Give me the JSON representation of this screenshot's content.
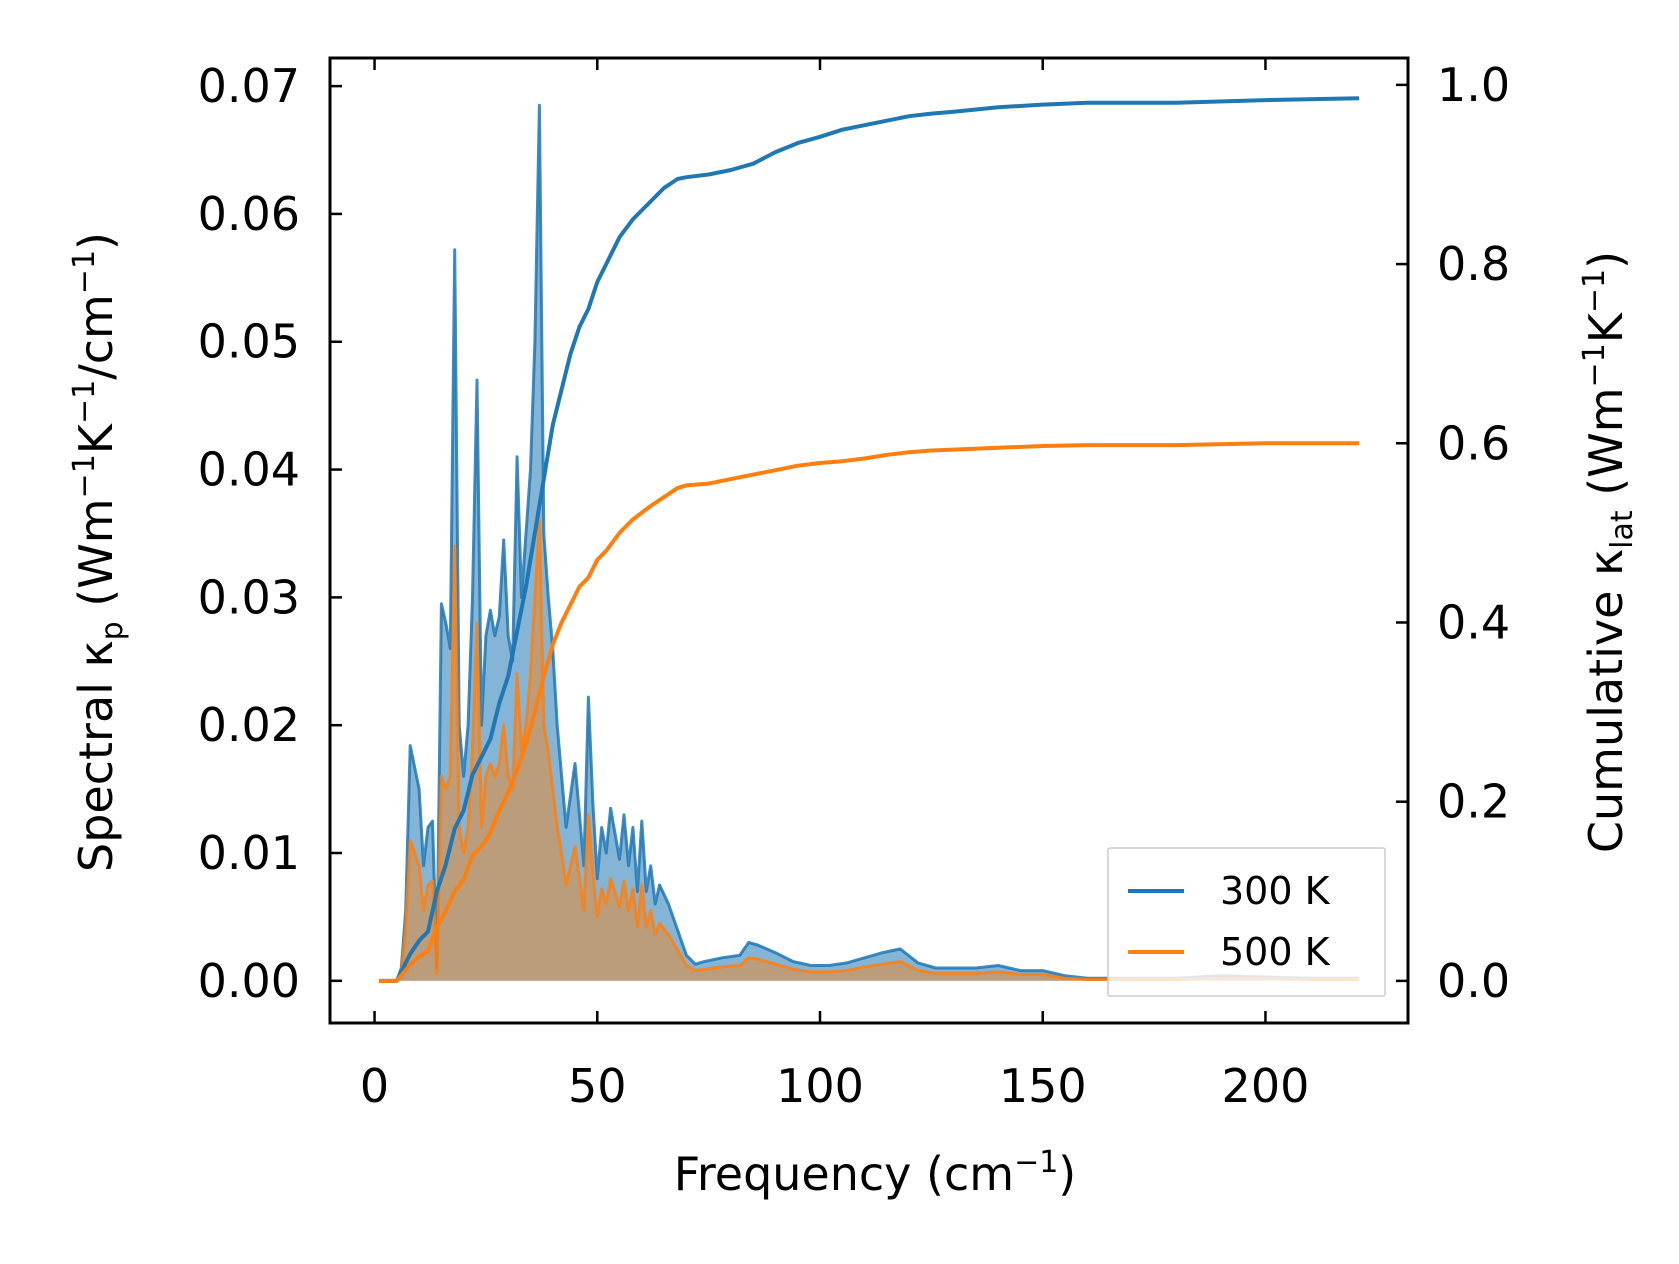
{
  "chart_data": {
    "type": "line",
    "xlabel": "Frequency (cm⁻¹)",
    "xlabel_parts": {
      "main": "Frequency (cm",
      "sup": "−1",
      "end": ")"
    },
    "ylabel_left": "Spectral κₚ (Wm⁻¹K⁻¹/cm⁻¹)",
    "ylabel_left_parts": {
      "a": "Spectral κ",
      "sub": "p",
      "b": " (Wm",
      "sup1": "−1",
      "c": "K",
      "sup2": "−1",
      "d": "/cm",
      "sup3": "−1",
      "e": ")"
    },
    "ylabel_right": "Cumulative κₗₐₜ (Wm⁻¹K⁻¹)",
    "ylabel_right_parts": {
      "a": "Cumulative κ",
      "sub": "lat",
      "b": " (Wm",
      "sup1": "−1",
      "c": "K",
      "sup2": "−1",
      "d": ")"
    },
    "xlim": [
      -10,
      232
    ],
    "ylim_left": [
      -0.0033,
      0.0722
    ],
    "ylim_right": [
      -0.047,
      1.03
    ],
    "xticks": [
      0,
      50,
      100,
      150,
      200
    ],
    "xtick_labels": [
      "0",
      "50",
      "100",
      "150",
      "200"
    ],
    "yticks_left": [
      0.0,
      0.01,
      0.02,
      0.03,
      0.04,
      0.05,
      0.06,
      0.07
    ],
    "ytick_labels_left": [
      "0.00",
      "0.01",
      "0.02",
      "0.03",
      "0.04",
      "0.05",
      "0.06",
      "0.07"
    ],
    "yticks_right": [
      0.0,
      0.2,
      0.4,
      0.6,
      0.8,
      1.0
    ],
    "ytick_labels_right": [
      "0.0",
      "0.2",
      "0.4",
      "0.6",
      "0.8",
      "1.0"
    ],
    "legend": {
      "position": "lower-right",
      "entries": [
        "300 K",
        "500 K"
      ]
    },
    "series": [
      {
        "name": "300 K",
        "color": "#1f77b4",
        "spectral": {
          "x": [
            1,
            5,
            6,
            7,
            8,
            10,
            11,
            12,
            13,
            14,
            15,
            16,
            17,
            18,
            19,
            20,
            21,
            22,
            23,
            24,
            25,
            26,
            27,
            28,
            29,
            30,
            31,
            32,
            33,
            34,
            35,
            36,
            37,
            38,
            39,
            40,
            41,
            42,
            43,
            45,
            46,
            47,
            48,
            49,
            50,
            51,
            52,
            53,
            55,
            56,
            57,
            58,
            59,
            60,
            61,
            62,
            63,
            64,
            66,
            68,
            70,
            72,
            74,
            78,
            82,
            84,
            86,
            90,
            94,
            98,
            102,
            106,
            110,
            114,
            118,
            122,
            126,
            130,
            135,
            140,
            145,
            150,
            155,
            160,
            165,
            170,
            180,
            190,
            200,
            210,
            221
          ],
          "y": [
            0,
            0,
            0.001,
            0.0055,
            0.0184,
            0.015,
            0.009,
            0.012,
            0.0125,
            0.001,
            0.0295,
            0.028,
            0.026,
            0.0572,
            0.02,
            0.016,
            0.02,
            0.03,
            0.047,
            0.02,
            0.027,
            0.029,
            0.027,
            0.0285,
            0.0345,
            0.027,
            0.025,
            0.041,
            0.03,
            0.035,
            0.04,
            0.05,
            0.0685,
            0.035,
            0.03,
            0.026,
            0.02,
            0.016,
            0.012,
            0.017,
            0.013,
            0.009,
            0.0222,
            0.014,
            0.008,
            0.012,
            0.01,
            0.0135,
            0.0095,
            0.013,
            0.009,
            0.012,
            0.007,
            0.0125,
            0.007,
            0.009,
            0.006,
            0.0075,
            0.006,
            0.004,
            0.002,
            0.0013,
            0.0015,
            0.0018,
            0.002,
            0.003,
            0.0028,
            0.0022,
            0.0015,
            0.0012,
            0.0012,
            0.0014,
            0.0018,
            0.0022,
            0.0025,
            0.0014,
            0.001,
            0.001,
            0.001,
            0.0012,
            0.0008,
            0.0008,
            0.0004,
            0.0002,
            0.0002,
            0.0002,
            0.0002,
            0.0004,
            0.0003,
            0.0002,
            0.0002
          ]
        },
        "cumulative": {
          "x": [
            1,
            5,
            8,
            10,
            12,
            14,
            16,
            18,
            20,
            22,
            24,
            26,
            28,
            30,
            32,
            34,
            36,
            38,
            40,
            42,
            44,
            46,
            48,
            50,
            52,
            55,
            58,
            62,
            65,
            68,
            70,
            75,
            80,
            85,
            90,
            95,
            100,
            105,
            110,
            115,
            120,
            125,
            130,
            140,
            150,
            160,
            180,
            200,
            221
          ],
          "y": [
            0,
            0,
            0.03,
            0.045,
            0.055,
            0.1,
            0.13,
            0.17,
            0.19,
            0.23,
            0.25,
            0.27,
            0.31,
            0.34,
            0.39,
            0.44,
            0.5,
            0.56,
            0.62,
            0.66,
            0.7,
            0.73,
            0.75,
            0.78,
            0.8,
            0.83,
            0.85,
            0.87,
            0.885,
            0.895,
            0.897,
            0.9,
            0.905,
            0.912,
            0.925,
            0.935,
            0.942,
            0.95,
            0.955,
            0.96,
            0.965,
            0.968,
            0.97,
            0.975,
            0.978,
            0.98,
            0.98,
            0.983,
            0.985
          ]
        }
      },
      {
        "name": "500 K",
        "color": "#ff7f0e",
        "spectral": {
          "x": [
            1,
            5,
            6,
            7,
            8,
            10,
            11,
            12,
            13,
            14,
            15,
            16,
            17,
            18,
            19,
            20,
            21,
            22,
            23,
            24,
            25,
            26,
            27,
            28,
            29,
            30,
            31,
            32,
            33,
            34,
            35,
            36,
            37,
            38,
            39,
            40,
            41,
            42,
            43,
            45,
            46,
            47,
            48,
            49,
            50,
            51,
            52,
            53,
            55,
            56,
            57,
            58,
            59,
            60,
            61,
            62,
            63,
            64,
            66,
            68,
            70,
            72,
            74,
            78,
            82,
            84,
            86,
            90,
            94,
            98,
            102,
            106,
            110,
            114,
            118,
            122,
            126,
            130,
            135,
            140,
            145,
            150,
            155,
            160,
            165,
            170,
            180,
            190,
            200,
            210,
            221
          ],
          "y": [
            0,
            0,
            0.0006,
            0.004,
            0.011,
            0.009,
            0.0055,
            0.0075,
            0.0078,
            0.0006,
            0.016,
            0.015,
            0.016,
            0.034,
            0.012,
            0.01,
            0.012,
            0.018,
            0.028,
            0.012,
            0.016,
            0.017,
            0.016,
            0.017,
            0.02,
            0.016,
            0.015,
            0.024,
            0.018,
            0.02,
            0.024,
            0.03,
            0.036,
            0.02,
            0.018,
            0.015,
            0.012,
            0.01,
            0.0075,
            0.0105,
            0.008,
            0.0055,
            0.013,
            0.0085,
            0.005,
            0.0072,
            0.006,
            0.008,
            0.0058,
            0.0078,
            0.0055,
            0.0072,
            0.0042,
            0.0075,
            0.0042,
            0.0055,
            0.0036,
            0.0045,
            0.0036,
            0.0024,
            0.0012,
            0.0008,
            0.0009,
            0.0011,
            0.0012,
            0.0018,
            0.0017,
            0.0013,
            0.0009,
            0.0007,
            0.0007,
            0.0008,
            0.0011,
            0.0013,
            0.0015,
            0.0008,
            0.0006,
            0.0006,
            0.0006,
            0.0007,
            0.0005,
            0.0005,
            0.0002,
            0.0001,
            0.0001,
            0.0001,
            0.0001,
            0.0002,
            0.0002,
            0.0001,
            0.0001
          ]
        },
        "cumulative": {
          "x": [
            1,
            5,
            8,
            10,
            12,
            14,
            16,
            18,
            20,
            22,
            24,
            26,
            28,
            30,
            32,
            34,
            36,
            38,
            40,
            42,
            44,
            46,
            48,
            50,
            52,
            55,
            58,
            62,
            65,
            68,
            70,
            75,
            80,
            85,
            90,
            95,
            100,
            105,
            110,
            115,
            120,
            125,
            130,
            140,
            150,
            160,
            180,
            200,
            221
          ],
          "y": [
            0,
            0,
            0.018,
            0.027,
            0.033,
            0.06,
            0.078,
            0.1,
            0.113,
            0.14,
            0.15,
            0.165,
            0.19,
            0.21,
            0.235,
            0.265,
            0.3,
            0.34,
            0.375,
            0.4,
            0.42,
            0.44,
            0.45,
            0.47,
            0.48,
            0.5,
            0.515,
            0.53,
            0.54,
            0.55,
            0.553,
            0.555,
            0.56,
            0.565,
            0.57,
            0.575,
            0.578,
            0.58,
            0.583,
            0.587,
            0.59,
            0.592,
            0.593,
            0.595,
            0.597,
            0.598,
            0.598,
            0.6,
            0.6
          ]
        }
      }
    ]
  }
}
